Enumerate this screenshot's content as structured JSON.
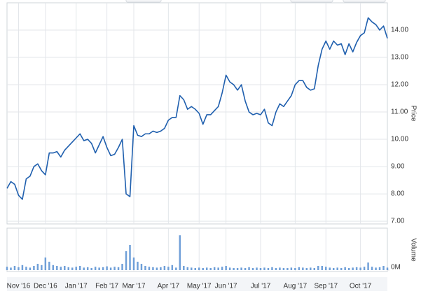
{
  "chart_data": {
    "type": "line",
    "ylabel": "Price",
    "y2label": "Volume",
    "categories": [
      null,
      null,
      null,
      "Nov '16",
      null,
      null,
      null,
      null,
      null,
      null,
      "Dec '16",
      null,
      null,
      null,
      null,
      null,
      null,
      null,
      "Jan '17",
      null,
      null,
      null,
      null,
      null,
      null,
      null,
      "Feb '17",
      null,
      null,
      null,
      null,
      null,
      null,
      "Mar '17",
      null,
      null,
      null,
      null,
      null,
      null,
      null,
      null,
      "Apr '17",
      null,
      null,
      null,
      null,
      null,
      null,
      null,
      "May '17",
      null,
      null,
      null,
      null,
      null,
      null,
      "Jun '17",
      null,
      null,
      null,
      null,
      null,
      null,
      null,
      null,
      "Jul '17",
      null,
      null,
      null,
      null,
      null,
      null,
      null,
      null,
      "Aug '17",
      null,
      null,
      null,
      null,
      null,
      null,
      null,
      "Sep '17",
      null,
      null,
      null,
      null,
      null,
      null,
      null,
      null,
      "Oct '17",
      null,
      null,
      null,
      null,
      null,
      null,
      null
    ],
    "series": [
      {
        "type": "line",
        "color": "#1f5fae",
        "values": [
          8.2,
          8.45,
          8.35,
          7.95,
          7.8,
          8.55,
          8.65,
          9.0,
          9.1,
          8.85,
          8.7,
          9.5,
          9.5,
          9.55,
          9.35,
          9.6,
          9.75,
          9.9,
          10.05,
          10.2,
          9.95,
          10.0,
          9.85,
          9.5,
          9.8,
          10.1,
          9.7,
          9.4,
          9.45,
          9.7,
          10.0,
          8.0,
          7.9,
          10.5,
          10.15,
          10.1,
          10.2,
          10.2,
          10.3,
          10.25,
          10.3,
          10.4,
          10.7,
          10.8,
          10.8,
          11.6,
          11.45,
          11.1,
          11.2,
          11.1,
          10.95,
          10.55,
          10.9,
          10.9,
          11.05,
          11.2,
          11.7,
          12.35,
          12.1,
          12.0,
          11.8,
          12.0,
          11.4,
          11.0,
          10.9,
          10.95,
          10.9,
          11.1,
          10.6,
          10.5,
          11.0,
          11.3,
          11.2,
          11.4,
          11.6,
          12.0,
          12.15,
          12.15,
          11.9,
          11.8,
          11.85,
          12.7,
          13.3,
          13.6,
          13.3,
          13.6,
          13.45,
          13.5,
          13.1,
          13.5,
          13.2,
          13.55,
          13.8,
          13.9,
          14.45,
          14.3,
          14.2,
          14.0,
          14.15,
          13.7
        ]
      },
      {
        "type": "bar",
        "axis": "y2",
        "color": "#6f9fd8",
        "values": [
          0.08,
          0.06,
          0.1,
          0.07,
          0.12,
          0.08,
          0.06,
          0.1,
          0.15,
          0.12,
          0.3,
          0.2,
          0.12,
          0.1,
          0.08,
          0.1,
          0.07,
          0.06,
          0.08,
          0.1,
          0.06,
          0.07,
          0.05,
          0.08,
          0.06,
          0.07,
          0.09,
          0.06,
          0.08,
          0.07,
          0.15,
          0.45,
          0.6,
          0.3,
          0.2,
          0.15,
          0.1,
          0.08,
          0.07,
          0.06,
          0.07,
          0.1,
          0.08,
          0.12,
          0.06,
          0.83,
          0.1,
          0.07,
          0.06,
          0.05,
          0.06,
          0.05,
          0.06,
          0.05,
          0.07,
          0.06,
          0.08,
          0.1,
          0.06,
          0.05,
          0.05,
          0.06,
          0.05,
          0.07,
          0.05,
          0.06,
          0.05,
          0.06,
          0.05,
          0.07,
          0.05,
          0.06,
          0.05,
          0.05,
          0.06,
          0.05,
          0.07,
          0.06,
          0.05,
          0.06,
          0.05,
          0.1,
          0.1,
          0.08,
          0.06,
          0.05,
          0.06,
          0.05,
          0.07,
          0.05,
          0.06,
          0.07,
          0.06,
          0.08,
          0.18,
          0.08,
          0.06,
          0.07,
          0.1,
          0.06
        ]
      }
    ],
    "ylim": [
      6.9,
      15
    ],
    "yticks": [
      {
        "value": 7,
        "label": "7.00"
      },
      {
        "value": 8,
        "label": "8.00"
      },
      {
        "value": 9,
        "label": "9.00"
      },
      {
        "value": 10,
        "label": "10.00"
      },
      {
        "value": 11,
        "label": "11.00"
      },
      {
        "value": 12,
        "label": "12.00"
      },
      {
        "value": 13,
        "label": "13.00"
      },
      {
        "value": 14,
        "label": "14.00"
      }
    ],
    "y2lim": [
      0,
      1
    ],
    "y2ticks": [
      {
        "value": 0,
        "label": "0M"
      }
    ],
    "grid": true
  }
}
